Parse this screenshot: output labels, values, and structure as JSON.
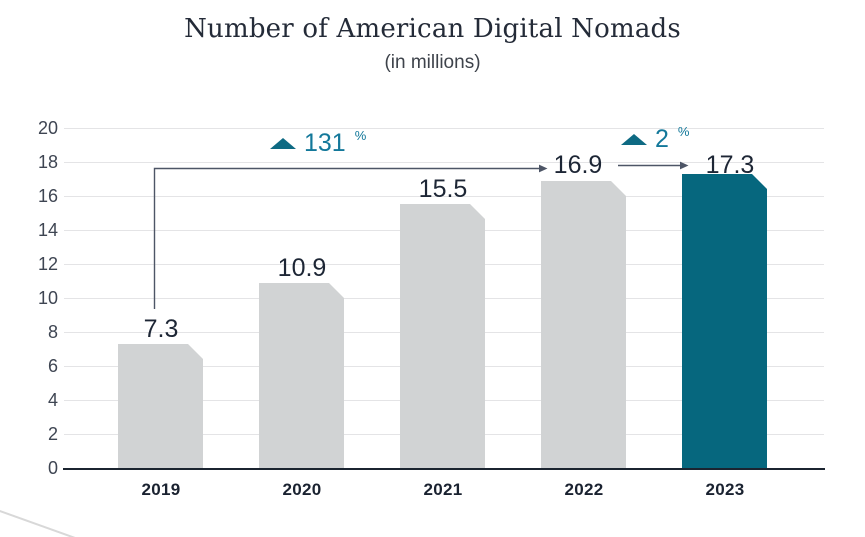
{
  "chart_data": {
    "type": "bar",
    "title": "Number of American Digital Nomads",
    "subtitle": "(in millions)",
    "categories": [
      "2019",
      "2020",
      "2021",
      "2022",
      "2023"
    ],
    "values": [
      7.3,
      10.9,
      15.5,
      16.9,
      17.3
    ],
    "value_labels": [
      "7.3",
      "10.9",
      "15.5",
      "16.9",
      "17.3"
    ],
    "yticks": [
      0,
      2,
      4,
      6,
      8,
      10,
      12,
      14,
      16,
      18,
      20
    ],
    "ylim": [
      0,
      20
    ],
    "grid": true,
    "legend": "none",
    "highlight_index": 4,
    "annotations": [
      {
        "text": "131",
        "suffix": "%",
        "direction": "increase",
        "from": "2019",
        "to": "2022"
      },
      {
        "text": "2",
        "suffix": "%",
        "direction": "increase",
        "from": "2022",
        "to": "2023"
      }
    ],
    "colors": {
      "bar_default": "#d1d3d4",
      "bar_highlight": "#06677e",
      "annotation_text": "#13789a",
      "annotation_triangle": "#0e6a83",
      "grid": "#e4e4e6",
      "axis": "#1b2430",
      "arrow": "#4d5566",
      "value_label": "#1d2635",
      "title": "#242b38"
    }
  }
}
